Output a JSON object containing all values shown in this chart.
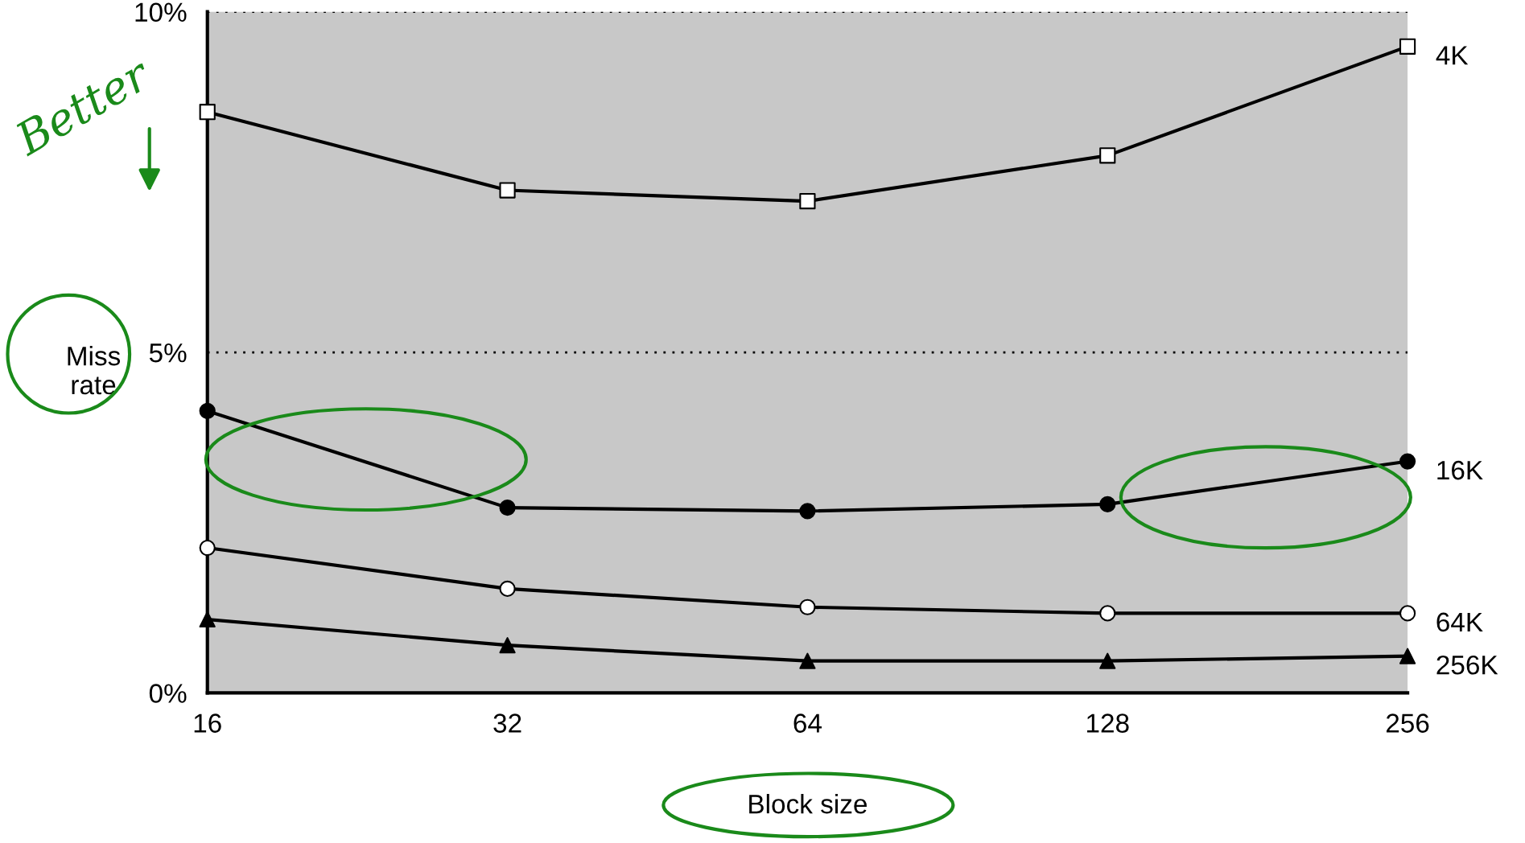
{
  "chart_data": {
    "type": "line",
    "xlabel": "Block size",
    "ylabel": "Miss\nrate",
    "categories": [
      "16",
      "32",
      "64",
      "128",
      "256"
    ],
    "series": [
      {
        "name": "4K",
        "color": "#000000",
        "marker": "square",
        "colors": [
          "#ffffff",
          "#ffffff",
          "#ffffff",
          "#ffffff",
          "#ffffff"
        ],
        "values": [
          8.53,
          7.38,
          7.22,
          7.89,
          9.49
        ]
      },
      {
        "name": "16K",
        "color": "#000000",
        "marker": "circle",
        "colors": [
          "#000000",
          "#000000",
          "#000000",
          "#000000",
          "#000000"
        ],
        "values": [
          4.14,
          2.72,
          2.67,
          2.77,
          3.4
        ]
      },
      {
        "name": "64K",
        "color": "#000000",
        "marker": "circle",
        "colors": [
          "#ffffff",
          "#ffffff",
          "#ffffff",
          "#ffffff",
          "#ffffff"
        ],
        "values": [
          2.13,
          1.53,
          1.26,
          1.17,
          1.17
        ]
      },
      {
        "name": "256K",
        "color": "#000000",
        "marker": "triangle",
        "colors": [
          "#000000",
          "#000000",
          "#000000",
          "#000000",
          "#000000"
        ],
        "values": [
          1.08,
          0.7,
          0.47,
          0.47,
          0.54
        ]
      }
    ],
    "ylim": [
      0,
      10
    ],
    "yticks": [
      {
        "value": 0,
        "label": "0%"
      },
      {
        "value": 5,
        "label": "5%"
      },
      {
        "value": 10,
        "label": "10%"
      }
    ],
    "grid": "y",
    "line_style": "solid",
    "annotations": [
      "Better"
    ]
  }
}
